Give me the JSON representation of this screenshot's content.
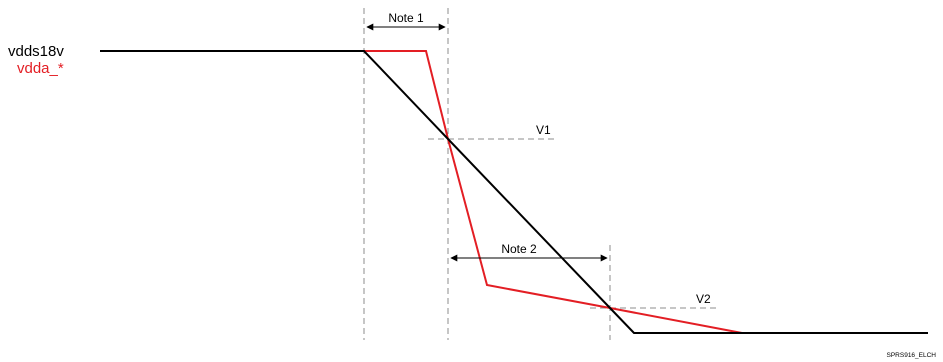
{
  "diagram": {
    "signals": [
      {
        "name": "vdds18v",
        "color": "#000000"
      },
      {
        "name": "vdda_*",
        "color": "#e31e24"
      }
    ],
    "notes": {
      "note1": "Note 1",
      "note2": "Note 2"
    },
    "voltage_levels": {
      "v1": "V1",
      "v2": "V2"
    },
    "figure_id": "SPRS916_ELCH",
    "colors": {
      "line_black": "#000000",
      "line_red": "#e31e24",
      "guide_gray": "#8c8c8c"
    }
  }
}
